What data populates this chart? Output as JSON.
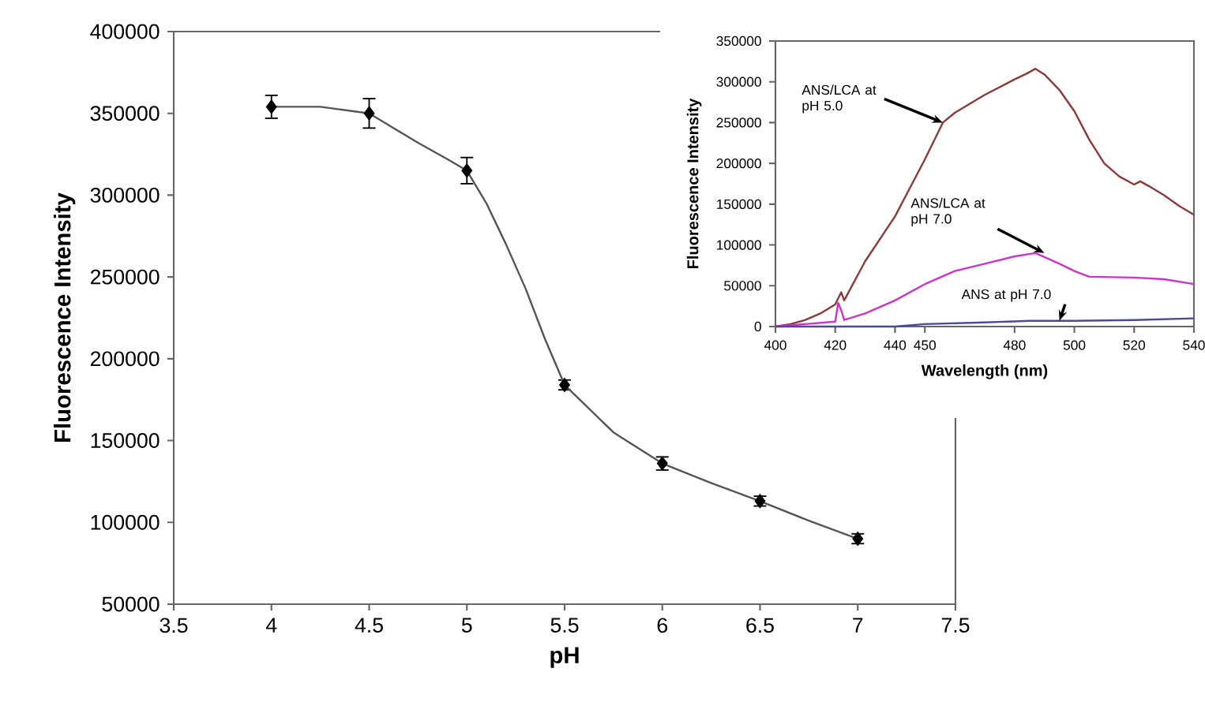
{
  "chart_data": [
    {
      "type": "scatter",
      "xlabel": "pH",
      "ylabel": "Fluorescence Intensity",
      "xlim": [
        3.5,
        7.5
      ],
      "xticks": [
        3.5,
        4,
        4.5,
        5,
        5.5,
        6,
        6.5,
        7,
        7.5
      ],
      "ylim": [
        50000,
        400000
      ],
      "yticks": [
        50000,
        100000,
        150000,
        200000,
        250000,
        300000,
        350000,
        400000
      ],
      "series": [
        {
          "type": "scatter",
          "color": "#000000",
          "marker": "diamond",
          "x": [
            4,
            4.5,
            5,
            5.5,
            6,
            6.5,
            7
          ],
          "values": [
            354000,
            350000,
            315000,
            184000,
            136000,
            113000,
            90000
          ],
          "errors": [
            7000,
            9000,
            8000,
            3000,
            4000,
            3000,
            3000
          ]
        },
        {
          "type": "line",
          "color": "#555555",
          "marker": "none",
          "x": [
            4,
            4.25,
            4.5,
            4.75,
            4.9,
            5,
            5.1,
            5.2,
            5.3,
            5.4,
            5.5,
            5.75,
            6,
            6.25,
            6.5,
            6.75,
            7
          ],
          "values": [
            354000,
            354000,
            350000,
            332000,
            322000,
            315000,
            295000,
            270000,
            243000,
            212000,
            184000,
            155000,
            136000,
            124000,
            113000,
            101000,
            90000
          ]
        }
      ]
    },
    {
      "type": "line",
      "xlabel": "Wavelength (nm)",
      "ylabel": "Fluorescence Intensity",
      "xlim": [
        400,
        540
      ],
      "xticks": [
        400,
        420,
        440,
        450,
        480,
        500,
        520,
        540
      ],
      "ylim": [
        0,
        350000
      ],
      "yticks": [
        0,
        50000,
        100000,
        150000,
        200000,
        250000,
        300000,
        350000
      ],
      "marker": "none",
      "series": [
        {
          "color": "#8b3a3a",
          "x": [
            400,
            405,
            410,
            415,
            420,
            422,
            423,
            430,
            440,
            450,
            456,
            460,
            470,
            480,
            484,
            487,
            490,
            495,
            500,
            505,
            510,
            515,
            520,
            522,
            525,
            530,
            535,
            540
          ],
          "values": [
            0,
            3000,
            8000,
            16000,
            27000,
            42000,
            32000,
            80000,
            135000,
            205000,
            250000,
            262000,
            284000,
            303000,
            310000,
            316000,
            309000,
            290000,
            264000,
            229000,
            200000,
            184000,
            174000,
            178000,
            172000,
            161000,
            148000,
            137000
          ]
        },
        {
          "color": "#cc33cc",
          "x": [
            400,
            410,
            420,
            421,
            422,
            423,
            430,
            440,
            450,
            460,
            470,
            480,
            487,
            495,
            500,
            505,
            520,
            530,
            540
          ],
          "values": [
            0,
            3000,
            6000,
            29000,
            20000,
            8000,
            16000,
            32000,
            52000,
            68000,
            77000,
            86000,
            90000,
            77000,
            68000,
            61000,
            60000,
            58000,
            52000
          ]
        },
        {
          "color": "#4a4a9a",
          "x": [
            400,
            440,
            450,
            470,
            485,
            500,
            520,
            540
          ],
          "values": [
            0,
            0,
            3000,
            5000,
            7000,
            7000,
            8000,
            10000
          ]
        }
      ],
      "annotations": [
        {
          "text": "ANS/LCA at pH 5.0",
          "x": 456,
          "y": 250000
        },
        {
          "text": "ANS/LCA at pH 7.0",
          "x": 490,
          "y": 90000
        },
        {
          "text": "ANS at pH 7.0",
          "x": 495,
          "y": 7000
        }
      ]
    }
  ]
}
